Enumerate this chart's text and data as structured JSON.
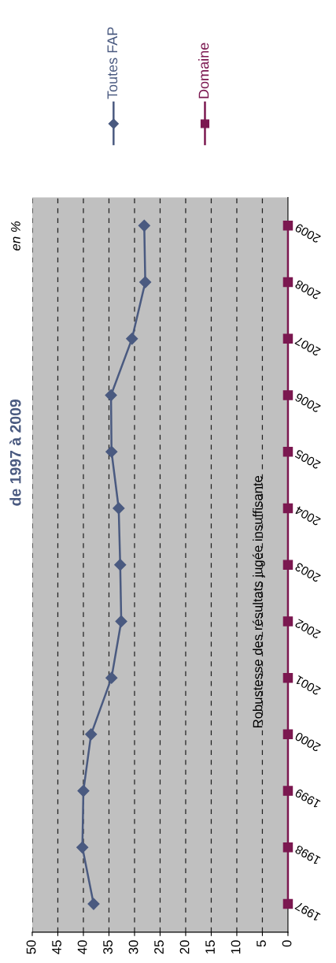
{
  "chart_data": {
    "type": "line",
    "orientation": "horizontal",
    "title": "de 1997 à 2009",
    "categories": [
      "2009",
      "2008",
      "2007",
      "2006",
      "2005",
      "2004",
      "2003",
      "2002",
      "2001",
      "2000",
      "1999",
      "1998",
      "1997"
    ],
    "series": [
      {
        "name": "Toutes FAP",
        "color": "#4a5a80",
        "marker": "diamond",
        "values": [
          28.1,
          27.9,
          30.5,
          34.6,
          34.5,
          33.1,
          32.8,
          32.6,
          34.5,
          38.5,
          40.0,
          40.2,
          38.0
        ]
      },
      {
        "name": "Domaine",
        "color": "#7b1850",
        "marker": "square",
        "values": [
          0,
          0,
          0,
          0,
          0,
          0,
          0,
          0,
          0,
          0,
          0,
          0,
          0
        ]
      }
    ],
    "xlim": [
      50,
      0
    ],
    "xticks": [
      50,
      45,
      40,
      35,
      30,
      25,
      20,
      15,
      10,
      5,
      0
    ],
    "grid": "x",
    "legend": "top",
    "annotations": [
      "en %",
      "Robustesse des résultats jugée insuffisante"
    ]
  }
}
